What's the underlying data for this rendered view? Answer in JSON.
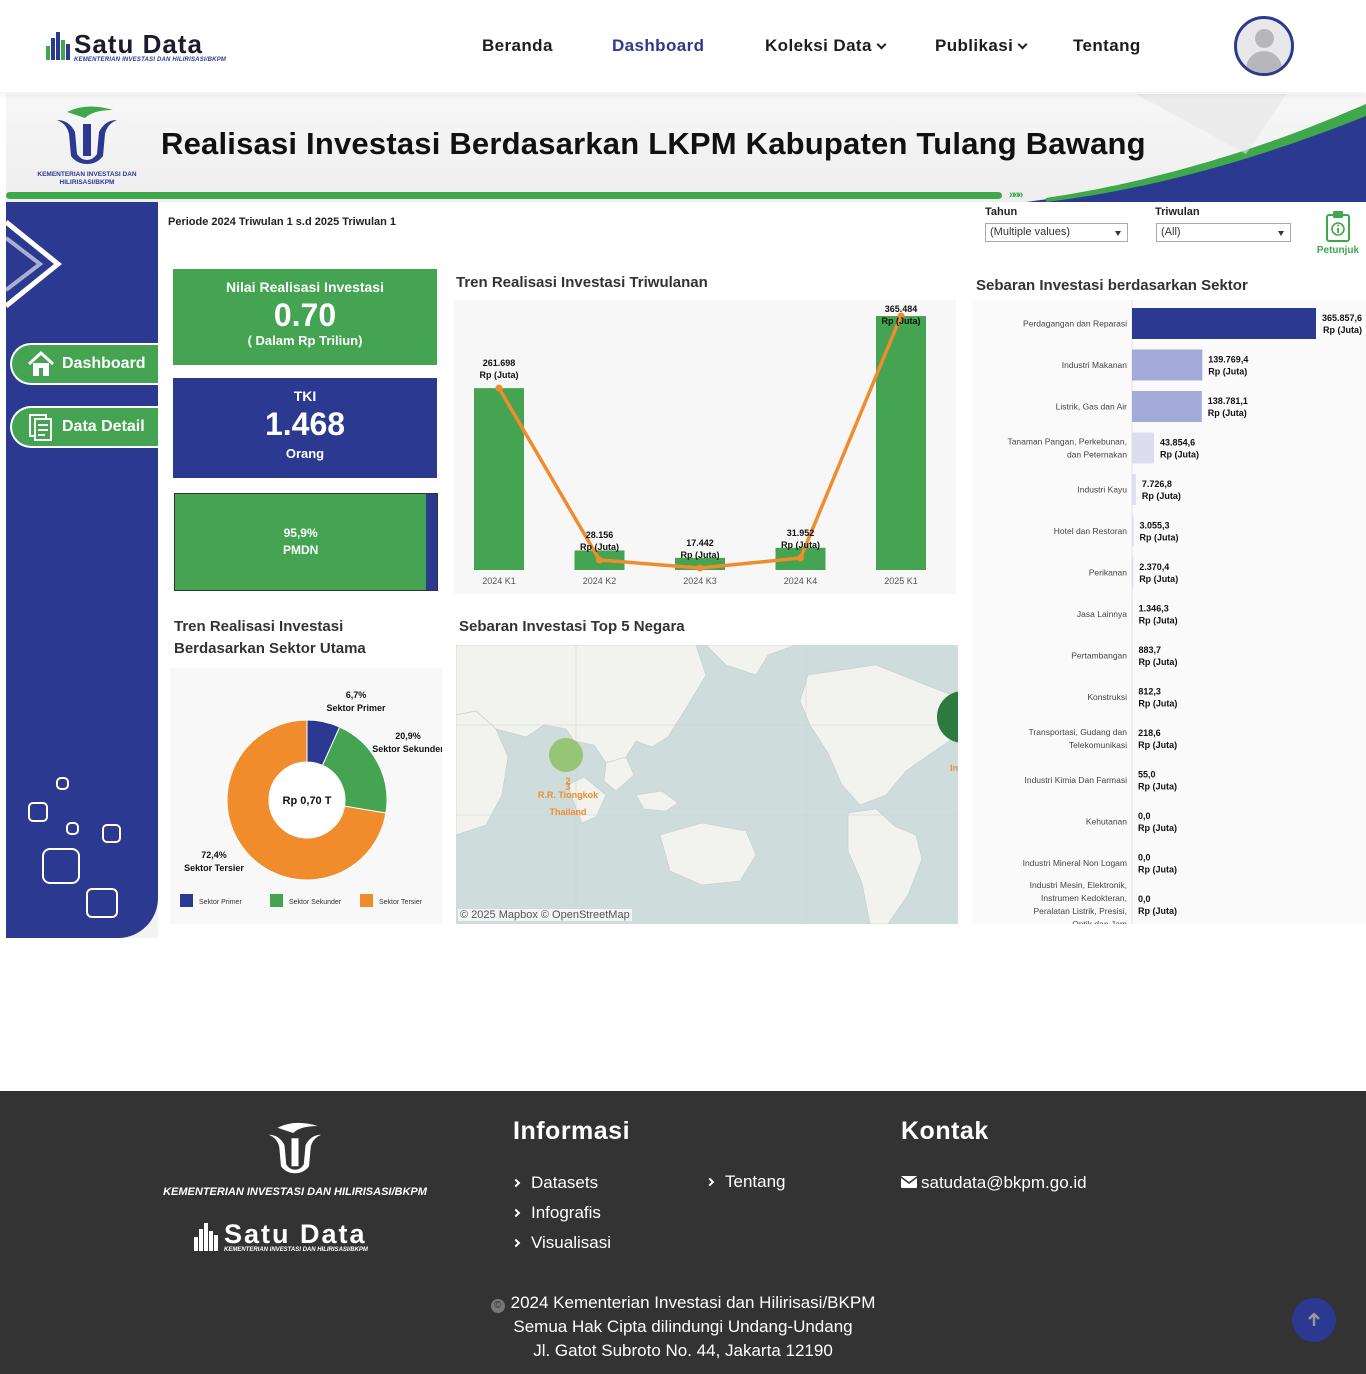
{
  "nav": {
    "brand": "Satu Data",
    "brand_sub": "KEMENTERIAN INVESTASI DAN HILIRISASI/BKPM",
    "items": [
      {
        "label": "Beranda"
      },
      {
        "label": "Dashboard"
      },
      {
        "label": "Koleksi Data"
      },
      {
        "label": "Publikasi"
      },
      {
        "label": "Tentang"
      }
    ],
    "active": "Dashboard"
  },
  "banner": {
    "logo_caption": "KEMENTERIAN INVESTASI DAN HILIRISASI/BKPM",
    "title": "Realisasi Investasi Berdasarkan LKPM Kabupaten Tulang Bawang",
    "arrows": "»»»"
  },
  "sidebar": {
    "dashboard_label": "Dashboard",
    "detail_label": "Data Detail"
  },
  "filters": {
    "periode": "Periode 2024 Triwulan 1 s.d 2025 Triwulan 1",
    "tahun_label": "Tahun",
    "tahun_value": "(Multiple values)",
    "triwulan_label": "Triwulan",
    "triwulan_value": "(All)",
    "petunjuk": "Petunjuk"
  },
  "kpi": {
    "nilai_title": "Nilai Realisasi Investasi",
    "nilai_value": "0.70",
    "nilai_unit": "( Dalam Rp Triliun)",
    "tki_title": "TKI",
    "tki_value": "1.468",
    "tki_unit": "Orang",
    "pmdn_pct": "95,9%",
    "pmdn_label": "PMDN",
    "pmdn_fraction": 0.959
  },
  "colors": {
    "green": "#44a452",
    "blue": "#2b3990",
    "orange": "#f08c2c",
    "light_blue": "#a3aad8",
    "lighter_blue": "#dcdef0"
  },
  "chart_data": [
    {
      "type": "bar",
      "title": "Tren Realisasi Investasi Triwulanan",
      "categories": [
        "2024 K1",
        "2024 K2",
        "2024 K3",
        "2024 K4",
        "2025 K1"
      ],
      "values": [
        261698,
        28156,
        17442,
        31952,
        365484
      ],
      "labels": [
        "261.698",
        "28.156",
        "17.442",
        "31.952",
        "365.484"
      ],
      "unit_label": "Rp (Juta)",
      "overlay_line": true
    },
    {
      "type": "pie",
      "title": "Tren Realisasi Investasi Berdasarkan Sektor Utama",
      "center_label": "Rp 0,70 T",
      "slices": [
        {
          "name": "Sektor Primer",
          "value": 6.7,
          "label": "6,7%"
        },
        {
          "name": "Sektor Sekunder",
          "value": 20.9,
          "label": "20,9%"
        },
        {
          "name": "Sektor Tersier",
          "value": 72.4,
          "label": "72,4%"
        }
      ],
      "legend": [
        "Sektor Primer",
        "Sektor Sekunder",
        "Sektor Tersier"
      ]
    },
    {
      "type": "bar",
      "title": "Sebaran Investasi berdasarkan Sektor",
      "orientation": "horizontal",
      "unit_label": "Rp (Juta)",
      "categories": [
        "Perdagangan dan Reparasi",
        "Industri Makanan",
        "Listrik, Gas dan Air",
        "Tanaman Pangan, Perkebunan, dan Peternakan",
        "Industri Kayu",
        "Hotel dan Restoran",
        "Perikanan",
        "Jasa Lainnya",
        "Pertambangan",
        "Konstruksi",
        "Transportasi, Gudang dan Telekomunikasi",
        "Industri Kimia Dan Farmasi",
        "Kehutanan",
        "Industri Mineral Non Logam",
        "Industri Mesin, Elektronik, Instrumen Kedokteran, Peralatan Listrik, Presisi, Optik dan Jam"
      ],
      "values": [
        365857.6,
        139769.4,
        138781.1,
        43854.6,
        7726.8,
        3055.3,
        2370.4,
        1346.3,
        883.7,
        812.3,
        218.6,
        55.0,
        0.0,
        0.0,
        0.0
      ],
      "labels": [
        "365.857,6",
        "139.769,4",
        "138.781,1",
        "43.854,6",
        "7.726,8",
        "3.055,3",
        "2.370,4",
        "1.346,3",
        "883,7",
        "812,3",
        "218,6",
        "55,0",
        "0,0",
        "0,0",
        "0,0"
      ]
    }
  ],
  "map": {
    "title": "Sebaran Investasi Top 5 Negara",
    "points": [
      {
        "rank": "2",
        "name": "R.R. Tiongkok"
      },
      {
        "rank": "3",
        "name": "Thailand"
      }
    ],
    "edge_label": "In",
    "attribution": "© 2025 Mapbox  © OpenStreetMap"
  },
  "footer": {
    "logo_caption": "KEMENTERIAN INVESTASI DAN HILIRISASI/BKPM",
    "brand": "Satu Data",
    "brand_sub": "KEMENTERIAN INVESTASI DAN HILIRISASI/BKPM",
    "info_title": "Informasi",
    "info_links": [
      "Datasets",
      "Infografis",
      "Visualisasi",
      "Tentang"
    ],
    "contact_title": "Kontak",
    "email": "satudata@bkpm.go.id",
    "copyright": "2024 Kementerian Investasi dan Hilirisasi/BKPM",
    "rights": "Semua Hak Cipta dilindungi Undang-Undang",
    "address": "Jl. Gatot Subroto No. 44, Jakarta 12190"
  }
}
